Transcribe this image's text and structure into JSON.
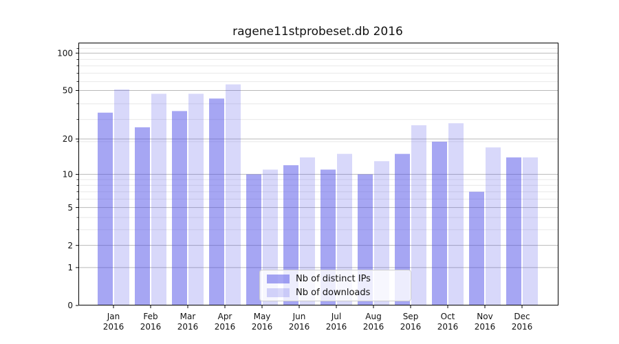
{
  "chart_data": {
    "type": "bar",
    "title": "ragene11stprobeset.db 2016",
    "categories": [
      "Jan",
      "Feb",
      "Mar",
      "Apr",
      "May",
      "Jun",
      "Jul",
      "Aug",
      "Sep",
      "Oct",
      "Nov",
      "Dec"
    ],
    "year_label": "2016",
    "series": [
      {
        "name": "Nb of distinct IPs",
        "color_hex": "#a6a6f2",
        "color_rgba": "rgba(70,70,230,0.48)",
        "values": [
          33,
          25,
          34,
          43,
          10,
          12,
          11,
          10,
          15,
          19,
          7,
          14
        ]
      },
      {
        "name": "Nb of downloads",
        "color_hex": "#d9d9f7",
        "color_rgba": "rgba(70,70,230,0.21)",
        "values": [
          51,
          47,
          47,
          56,
          11,
          14,
          15,
          13,
          26,
          27,
          17,
          14
        ]
      }
    ],
    "y_scale": "log10(value+1)",
    "y_ticks": [
      0,
      1,
      2,
      5,
      10,
      20,
      50,
      100
    ],
    "y_minor_gridlines": [
      3,
      4,
      6,
      7,
      8,
      9,
      19,
      29,
      39,
      59,
      69,
      79,
      89,
      109
    ],
    "ylim": [
      0,
      120
    ],
    "grid": true,
    "legend_position": "lower center",
    "colors": {
      "major_grid": "#b9b9b9",
      "minor_grid": "#e8e8e8",
      "axis": "#000000",
      "text": "#111111",
      "legend_border": "#cccccc"
    }
  }
}
